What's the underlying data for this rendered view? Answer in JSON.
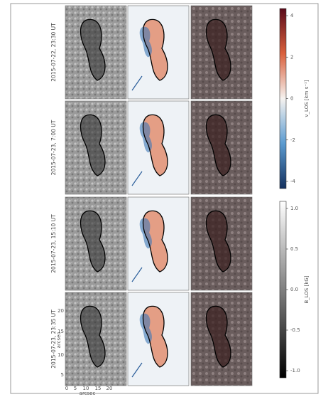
{
  "figure": {
    "rows": [
      {
        "label": "2015-07-22, 23:30 UT"
      },
      {
        "label": "2015-07-23, 7:00 UT"
      },
      {
        "label": "2015-07-23, 15:10 UT"
      },
      {
        "label": "2015-07-23, 23:35 UT"
      }
    ],
    "axes": {
      "xticks": [
        "0",
        "5",
        "10",
        "15",
        "20"
      ],
      "yticks": [
        "20",
        "15",
        "10",
        "5"
      ],
      "xlabel": "arcsec",
      "ylabel": "arcsec"
    },
    "colorbars": [
      {
        "label": "v_LOS [km s⁻¹]",
        "ticks": [
          "4",
          "2",
          "0",
          "-2",
          "-4"
        ]
      },
      {
        "label": "B_LOS [kG]",
        "ticks": [
          "1.0",
          "0.5",
          "0.0",
          "-0.5",
          "-1.0"
        ]
      }
    ]
  }
}
